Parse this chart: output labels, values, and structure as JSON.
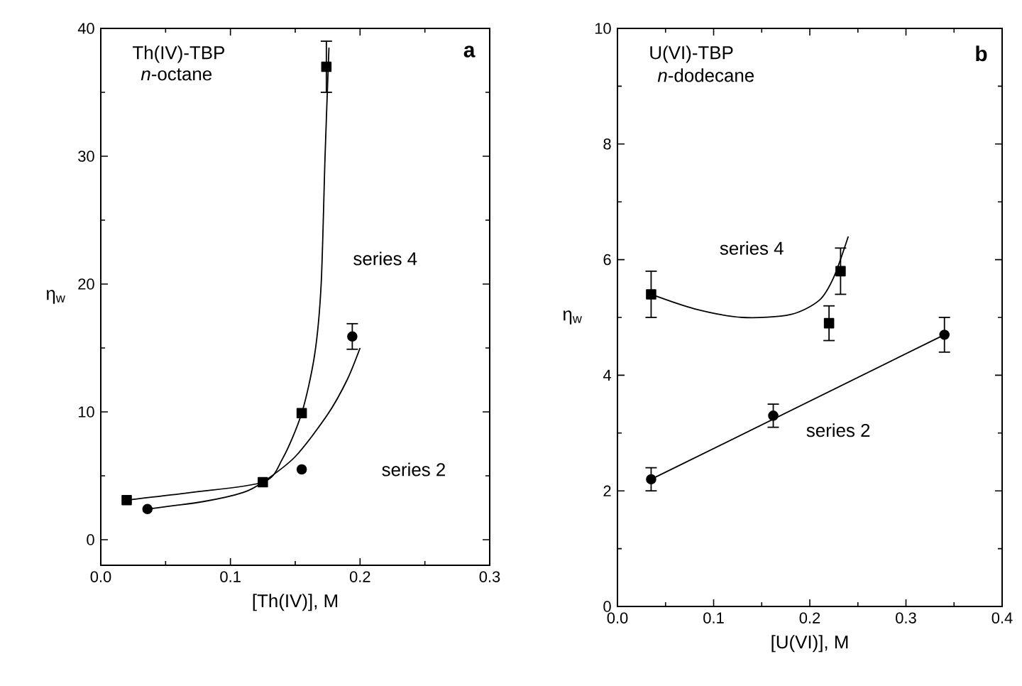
{
  "chart_data": [
    {
      "type": "scatter",
      "xlabel": "[Th(IV)], M",
      "ylabel": "η$_{w}$",
      "xlim": [
        0,
        0.3
      ],
      "xticks": [
        {
          "value": 0,
          "label": "0.0"
        },
        {
          "value": 0.1,
          "label": "0.1"
        },
        {
          "value": 0.2,
          "label": "0.2"
        },
        {
          "value": 0.3,
          "label": "0.3"
        }
      ],
      "ylim": [
        -2,
        40
      ],
      "yticks": [
        0,
        10,
        20,
        30,
        40
      ],
      "annotations": [
        "Th(IV)-TBP",
        "*n*-octane",
        "**a**"
      ],
      "series": [
        {
          "name": "series 4",
          "marker": "square",
          "color": "#000000",
          "x": [
            0.02,
            0.125,
            0.155,
            0.174
          ],
          "values": [
            3.1,
            4.5,
            9.9,
            37
          ],
          "errors": [
            null,
            null,
            null,
            2
          ]
        },
        {
          "name": "series 2",
          "marker": "circle",
          "color": "#000000",
          "x": [
            0.036,
            0.155,
            0.194
          ],
          "values": [
            2.4,
            5.5,
            15.9
          ],
          "errors": [
            null,
            null,
            1
          ]
        },
        {
          "type": "line",
          "marker": "none",
          "line_style": "solid",
          "color": "#000000",
          "x": [
            0.02,
            0.07,
            0.125,
            0.14,
            0.155,
            0.165,
            0.17,
            0.173,
            0.176
          ],
          "values": [
            3.1,
            3.7,
            4.5,
            6.3,
            9.9,
            14.5,
            20,
            30,
            38.5
          ]
        },
        {
          "type": "line",
          "marker": "none",
          "line_style": "solid",
          "color": "#000000",
          "x": [
            0.036,
            0.08,
            0.11,
            0.125,
            0.15,
            0.175,
            0.19,
            0.2
          ],
          "values": [
            2.4,
            3.0,
            3.7,
            4.5,
            6.5,
            9.8,
            12.5,
            15
          ]
        }
      ]
    },
    {
      "type": "scatter",
      "xlabel": "[U(VI)], M",
      "ylabel": "η$_{w}$",
      "xlim": [
        0,
        0.4
      ],
      "xticks": [
        {
          "value": 0,
          "label": "0.0"
        },
        {
          "value": 0.1,
          "label": "0.1"
        },
        {
          "value": 0.2,
          "label": "0.2"
        },
        {
          "value": 0.3,
          "label": "0.3"
        },
        {
          "value": 0.4,
          "label": "0.4"
        }
      ],
      "ylim": [
        0,
        10
      ],
      "yticks": [
        0,
        2,
        4,
        6,
        8,
        10
      ],
      "annotations": [
        "U(VI)-TBP",
        "*n*-dodecane",
        "**b**"
      ],
      "series": [
        {
          "name": "series 4",
          "marker": "square",
          "color": "#000000",
          "x": [
            0.035,
            0.22,
            0.232
          ],
          "values": [
            5.4,
            4.9,
            5.8
          ],
          "errors": [
            0.4,
            0.3,
            0.4
          ]
        },
        {
          "name": "series 2",
          "marker": "circle",
          "color": "#000000",
          "x": [
            0.035,
            0.162,
            0.34
          ],
          "values": [
            2.2,
            3.3,
            4.7
          ],
          "errors": [
            0.2,
            0.2,
            0.3
          ]
        },
        {
          "type": "line",
          "marker": "none",
          "line_style": "solid",
          "color": "#000000",
          "x": [
            0.035,
            0.08,
            0.13,
            0.18,
            0.21,
            0.225,
            0.24
          ],
          "values": [
            5.4,
            5.15,
            5.0,
            5.05,
            5.3,
            5.7,
            6.4
          ]
        },
        {
          "type": "line",
          "marker": "none",
          "line_style": "solid",
          "color": "#000000",
          "x": [
            0.035,
            0.34
          ],
          "values": [
            2.2,
            4.7
          ]
        }
      ]
    }
  ]
}
